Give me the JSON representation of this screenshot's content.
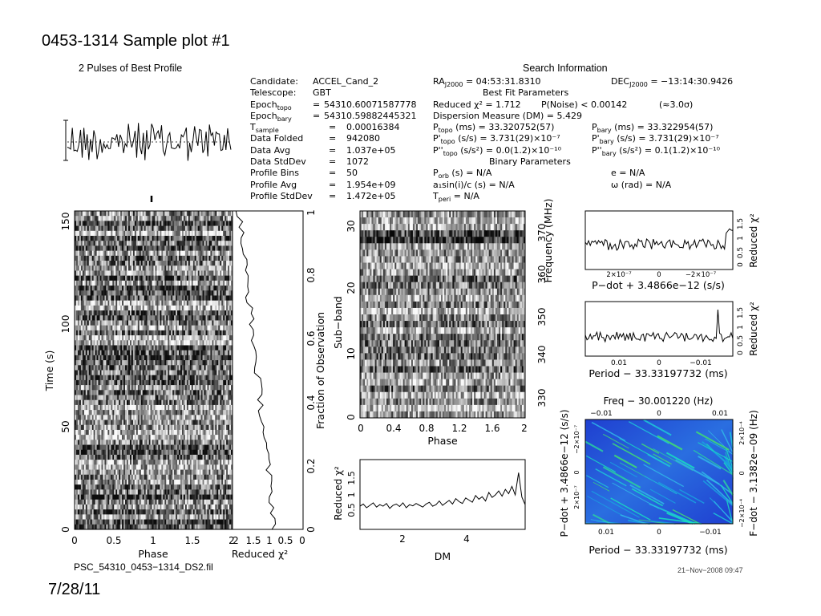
{
  "slide": {
    "title": "0453-1314 Sample plot #1",
    "date": "7/28/11"
  },
  "footer": {
    "filename": "PSC_54310_0453−1314_DS2.fil",
    "timestamp": "21−Nov−2008 09:47"
  },
  "info_left": [
    {
      "key": "Candidate:",
      "eq": "",
      "val": "ACCEL_Cand_2"
    },
    {
      "key": "Telescope:",
      "eq": "",
      "val": "GBT"
    },
    {
      "key": "Epochₜₒₚₒ",
      "eq": "=",
      "val": "54310.60071587778"
    },
    {
      "key": "Epoch_bary",
      "eq": "=",
      "val": "54310.59882445321"
    },
    {
      "key": "T_sample",
      "eq": "=",
      "val": "0.00016384"
    },
    {
      "key": "Data Folded",
      "eq": "=",
      "val": "942080"
    },
    {
      "key": "Data Avg",
      "eq": "=",
      "val": "1.037e+05"
    },
    {
      "key": "Data StdDev",
      "eq": "=",
      "val": "1072"
    },
    {
      "key": "Profile Bins",
      "eq": "=",
      "val": "50"
    },
    {
      "key": "Profile Avg",
      "eq": "=",
      "val": "1.954e+09"
    },
    {
      "key": "Profile StdDev",
      "eq": "=",
      "val": "1.472e+05"
    }
  ],
  "info_left_display": {
    "epoch_topo": "Epoch",
    "epoch_topo_sub": "topo",
    "epoch_bary": "Epoch",
    "epoch_bary_sub": "bary",
    "tsample": "T",
    "tsample_sub": "sample"
  },
  "search": {
    "header": "Search Information",
    "ra": "RA",
    "ra_sub": "J2000",
    "ra_val": "= 04:53:31.8310",
    "dec": "DEC",
    "dec_sub": "J2000",
    "dec_val": "= −13:14:30.9426",
    "best_fit": "Best Fit Parameters",
    "reduced_chi": "Reduced χ² = 1.712",
    "pnoise": "P(Noise) < 0.00142",
    "sigma": "(≈3.0σ)",
    "dm": "Dispersion Measure (DM) = 5.429",
    "p_topo": "P",
    "p_topo_sub": "topo",
    "p_topo_val": "(ms) = 33.320752(57)",
    "p_bary": "P",
    "p_bary_sub": "bary",
    "p_bary_val": "(ms) = 33.322954(57)",
    "pd_topo": "P'",
    "pd_topo_sub": "topo",
    "pd_topo_val": "(s/s) = 3.731(29)×10⁻⁷",
    "pd_bary": "P'",
    "pd_bary_sub": "bary",
    "pd_bary_val": "(s/s) = 3.731(29)×10⁻⁷",
    "pdd_topo": "P''",
    "pdd_topo_sub": "topo",
    "pdd_topo_val": "(s/s²) = 0.0(1.2)×10⁻¹⁰",
    "pdd_bary": "P''",
    "pdd_bary_sub": "bary",
    "pdd_bary_val": "(s/s²) = 0.1(1.2)×10⁻¹⁰",
    "binary": "Binary Parameters",
    "porb": "P",
    "porb_sub": "orb",
    "porb_val": "(s) = N/A",
    "asini": "a₁sin(i)/c (s) = N/A",
    "tperi": "T",
    "tperi_sub": "peri",
    "tperi_val": "= N/A",
    "ecc": "e = N/A",
    "omega": "ω (rad) = N/A"
  },
  "chart_data": [
    {
      "type": "line",
      "title": "2 Pulses of Best Profile",
      "xlabel": "",
      "ylabel": "",
      "xlim": [
        0,
        2
      ],
      "description_note": "Pulse profile repeated twice"
    },
    {
      "type": "heatmap",
      "name": "time-phase",
      "xlabel": "Phase",
      "ylabel": "Time (s)",
      "xlim": [
        0,
        2
      ],
      "ylim": [
        0,
        155
      ],
      "xticks": [
        "0",
        "0.5",
        "1",
        "1.5",
        "2"
      ],
      "yticks": [
        "0",
        "50",
        "100",
        "150"
      ]
    },
    {
      "type": "line",
      "name": "time-chi2",
      "xlabel": "Reduced χ²",
      "ylabel": "Fraction of Observation",
      "xticks": [
        "2",
        "1.5",
        "1",
        "0.5",
        "0"
      ],
      "yticks": [
        "0",
        "0.2",
        "0.4",
        "0.6",
        "0.8",
        "1"
      ]
    },
    {
      "type": "heatmap",
      "name": "subband-phase",
      "xlabel": "Phase",
      "ylabel": "Sub−band",
      "ylabel2": "Frequency (MHz)",
      "xticks": [
        "0",
        "0.4",
        "0.8",
        "1.2",
        "1.6",
        "2"
      ],
      "yticks": [
        "0",
        "10",
        "20",
        "30"
      ],
      "y2ticks": [
        "330",
        "340",
        "350",
        "360",
        "370"
      ]
    },
    {
      "type": "line",
      "name": "dm-chi2",
      "xlabel": "DM",
      "ylabel": "Reduced χ²",
      "xticks": [
        "2",
        "4"
      ],
      "yticks": [
        "0.5",
        "1",
        "1.5"
      ],
      "values": [
        0.55,
        0.62,
        0.5,
        0.58,
        0.66,
        0.52,
        0.6,
        0.55,
        0.64,
        0.48,
        0.58,
        0.62,
        0.54,
        0.66,
        0.5,
        0.6,
        0.56,
        0.64,
        0.58,
        0.52,
        0.62,
        0.68,
        0.55,
        0.6,
        0.72,
        0.58,
        0.66,
        0.74,
        0.62,
        0.8,
        0.7,
        0.64,
        0.82,
        0.75,
        0.68,
        0.9,
        0.78,
        0.86,
        0.72,
        1.0,
        0.84,
        0.92,
        1.05,
        0.88,
        1.1,
        0.96,
        1.2,
        0.92,
        1.65,
        0.85,
        0.6
      ]
    },
    {
      "type": "line",
      "name": "pdot-chi2",
      "xlabel": "P−dot + 3.4866e−12 (s/s)",
      "ylabel": "Reduced χ²",
      "xticks": [
        "2×10⁻⁷",
        "0",
        "−2×10⁻⁷"
      ],
      "yticks": [
        "0",
        "0.5",
        "1",
        "1.5"
      ]
    },
    {
      "type": "line",
      "name": "period-chi2",
      "xlabel": "Period − 33.33197732 (ms)",
      "ylabel": "Reduced χ²",
      "xticks": [
        "0.01",
        "0",
        "−0.01"
      ],
      "yticks": [
        "0",
        "0.5",
        "1",
        "1.5"
      ]
    },
    {
      "type": "heatmap",
      "name": "period-pdot",
      "title": "Freq − 30.001220 (Hz)",
      "xlabel": "Period − 33.33197732 (ms)",
      "ylabel": "P−dot + 3.4866e−12 (s/s)",
      "ylabel2": "F−dot − 3.1382e−09 (Hz)",
      "xticks": [
        "0.01",
        "0",
        "−0.01"
      ],
      "topticks": [
        "−0.01",
        "0",
        "0.01"
      ],
      "yticks": [
        "2×10⁻⁷",
        "0",
        "−2×10⁻⁷"
      ],
      "y2ticks": [
        "−2×10⁻⁴",
        "0",
        "2×10⁻⁴"
      ]
    }
  ]
}
